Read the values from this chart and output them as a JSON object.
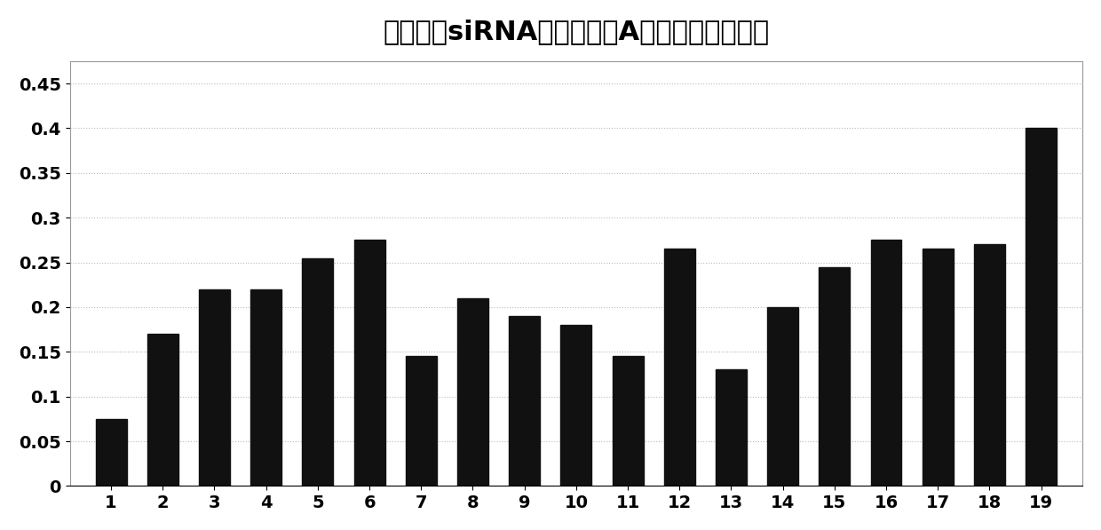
{
  "title": "低效率的siRNA序列中碱基A在每列出现的频率",
  "categories": [
    1,
    2,
    3,
    4,
    5,
    6,
    7,
    8,
    9,
    10,
    11,
    12,
    13,
    14,
    15,
    16,
    17,
    18,
    19
  ],
  "values": [
    0.075,
    0.17,
    0.22,
    0.22,
    0.255,
    0.275,
    0.145,
    0.21,
    0.19,
    0.18,
    0.145,
    0.265,
    0.13,
    0.2,
    0.245,
    0.275,
    0.265,
    0.27,
    0.4
  ],
  "bar_color": "#111111",
  "background_color": "#ffffff",
  "ylim": [
    0,
    0.475
  ],
  "yticks": [
    0,
    0.05,
    0.1,
    0.15,
    0.2,
    0.25,
    0.3,
    0.35,
    0.4,
    0.45
  ],
  "ytick_labels": [
    "0",
    "0.05",
    "0.1",
    "0.15",
    "0.2",
    "0.25",
    "0.3",
    "0.35",
    "0.4",
    "0.45"
  ],
  "title_fontsize": 22,
  "tick_fontsize": 14,
  "grid_color": "#bbbbbb",
  "grid_style": ":"
}
